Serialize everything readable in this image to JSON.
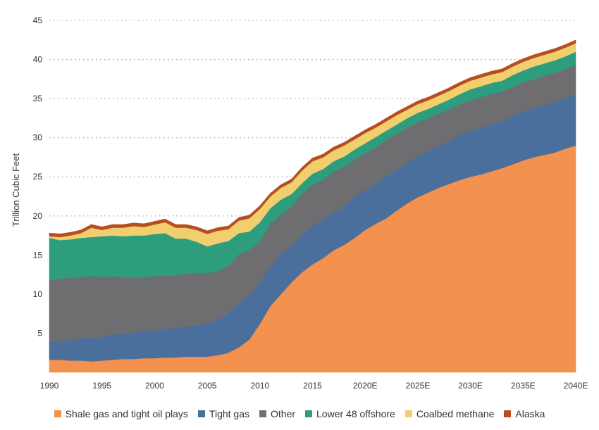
{
  "chart_data": {
    "type": "area",
    "stacked": true,
    "title": "",
    "xlabel": "",
    "ylabel": "Trillion Cubic Feet",
    "ylim": [
      0,
      45
    ],
    "yticks": [
      "5",
      "10",
      "15",
      "20",
      "25",
      "30",
      "35",
      "40",
      "45"
    ],
    "grid": true,
    "legend_position": "bottom",
    "x": [
      1990,
      1991,
      1992,
      1993,
      1994,
      1995,
      1996,
      1997,
      1998,
      1999,
      2000,
      2001,
      2002,
      2003,
      2004,
      2005,
      2006,
      2007,
      2008,
      2009,
      2010,
      2011,
      2012,
      2013,
      2014,
      2015,
      2016,
      2017,
      2018,
      2019,
      2020,
      2021,
      2022,
      2023,
      2024,
      2025,
      2026,
      2027,
      2028,
      2029,
      2030,
      2031,
      2032,
      2033,
      2034,
      2035,
      2036,
      2037,
      2038,
      2039,
      2040
    ],
    "x_tick_labels": [
      {
        "x": 1990,
        "label": "1990"
      },
      {
        "x": 1995,
        "label": "1995"
      },
      {
        "x": 2000,
        "label": "2000"
      },
      {
        "x": 2005,
        "label": "2005"
      },
      {
        "x": 2010,
        "label": "2010"
      },
      {
        "x": 2015,
        "label": "2015"
      },
      {
        "x": 2020,
        "label": "2020E"
      },
      {
        "x": 2025,
        "label": "2025E"
      },
      {
        "x": 2030,
        "label": "2030E"
      },
      {
        "x": 2035,
        "label": "2035E"
      },
      {
        "x": 2040,
        "label": "2040E"
      }
    ],
    "series": [
      {
        "name": "Shale gas and tight oil plays",
        "color": "#f4914e",
        "values": [
          1.6,
          1.6,
          1.5,
          1.5,
          1.4,
          1.5,
          1.6,
          1.7,
          1.7,
          1.8,
          1.8,
          1.9,
          1.9,
          2.0,
          2.0,
          2.0,
          2.2,
          2.5,
          3.2,
          4.2,
          6.2,
          8.5,
          10.0,
          11.5,
          12.8,
          13.8,
          14.6,
          15.6,
          16.3,
          17.2,
          18.2,
          19.0,
          19.7,
          20.7,
          21.6,
          22.4,
          23.0,
          23.6,
          24.1,
          24.6,
          25.0,
          25.3,
          25.7,
          26.1,
          26.6,
          27.1,
          27.5,
          27.8,
          28.1,
          28.6,
          29.0
        ]
      },
      {
        "name": "Tight gas",
        "color": "#4b6f9c",
        "values": [
          2.2,
          2.4,
          2.6,
          2.8,
          3.1,
          3.0,
          3.2,
          3.3,
          3.4,
          3.4,
          3.5,
          3.7,
          3.8,
          3.9,
          4.0,
          4.3,
          4.6,
          5.0,
          5.6,
          5.6,
          5.3,
          5.0,
          5.2,
          4.7,
          4.8,
          4.9,
          5.0,
          4.8,
          5.0,
          5.3,
          5.1,
          5.1,
          5.4,
          5.2,
          5.3,
          5.3,
          5.3,
          5.4,
          5.5,
          5.8,
          5.9,
          6.0,
          6.0,
          6.0,
          6.2,
          6.3,
          6.3,
          6.4,
          6.5,
          6.5,
          6.5
        ]
      },
      {
        "name": "Other",
        "color": "#6e6e70",
        "values": [
          8.0,
          8.0,
          8.0,
          7.9,
          7.8,
          7.7,
          7.5,
          7.2,
          7.1,
          7.0,
          7.0,
          6.8,
          6.7,
          6.7,
          6.7,
          6.4,
          6.2,
          6.1,
          6.3,
          5.8,
          5.2,
          5.5,
          5.0,
          5.0,
          5.2,
          5.3,
          5.0,
          5.3,
          5.0,
          4.7,
          4.7,
          4.7,
          4.6,
          4.6,
          4.4,
          4.3,
          4.2,
          4.1,
          4.0,
          3.9,
          3.9,
          3.9,
          3.9,
          3.8,
          3.7,
          3.7,
          3.7,
          3.7,
          3.7,
          3.7,
          3.8
        ]
      },
      {
        "name": "Lower 48 offshore",
        "color": "#2e9d7d",
        "values": [
          5.4,
          4.9,
          4.9,
          5.0,
          5.0,
          5.2,
          5.2,
          5.2,
          5.3,
          5.3,
          5.4,
          5.4,
          4.7,
          4.5,
          4.0,
          3.4,
          3.5,
          3.2,
          2.7,
          2.4,
          2.5,
          2.0,
          1.9,
          1.6,
          1.4,
          1.4,
          1.4,
          1.3,
          1.3,
          1.3,
          1.3,
          1.3,
          1.2,
          1.2,
          1.2,
          1.2,
          1.2,
          1.2,
          1.3,
          1.3,
          1.4,
          1.4,
          1.4,
          1.4,
          1.5,
          1.5,
          1.6,
          1.6,
          1.6,
          1.6,
          1.7
        ]
      },
      {
        "name": "Coalbed methane",
        "color": "#f1cf6f",
        "values": [
          0.2,
          0.4,
          0.5,
          0.6,
          1.2,
          0.8,
          1.0,
          1.1,
          1.2,
          1.1,
          1.2,
          1.4,
          1.4,
          1.4,
          1.5,
          1.6,
          1.6,
          1.5,
          1.6,
          1.7,
          1.7,
          1.5,
          1.5,
          1.5,
          1.6,
          1.6,
          1.5,
          1.4,
          1.4,
          1.3,
          1.3,
          1.2,
          1.2,
          1.2,
          1.1,
          1.1,
          1.1,
          1.1,
          1.1,
          1.1,
          1.1,
          1.1,
          1.1,
          1.1,
          1.1,
          1.1,
          1.1,
          1.1,
          1.1,
          1.1,
          1.1
        ]
      },
      {
        "name": "Alaska",
        "color": "#b74e1f",
        "values": [
          0.4,
          0.4,
          0.4,
          0.4,
          0.4,
          0.4,
          0.4,
          0.4,
          0.4,
          0.4,
          0.4,
          0.4,
          0.4,
          0.4,
          0.4,
          0.4,
          0.4,
          0.4,
          0.4,
          0.4,
          0.4,
          0.4,
          0.4,
          0.4,
          0.4,
          0.4,
          0.4,
          0.4,
          0.4,
          0.4,
          0.4,
          0.4,
          0.4,
          0.4,
          0.4,
          0.4,
          0.4,
          0.4,
          0.4,
          0.4,
          0.4,
          0.4,
          0.4,
          0.4,
          0.4,
          0.4,
          0.4,
          0.4,
          0.4,
          0.4,
          0.4
        ]
      }
    ]
  }
}
